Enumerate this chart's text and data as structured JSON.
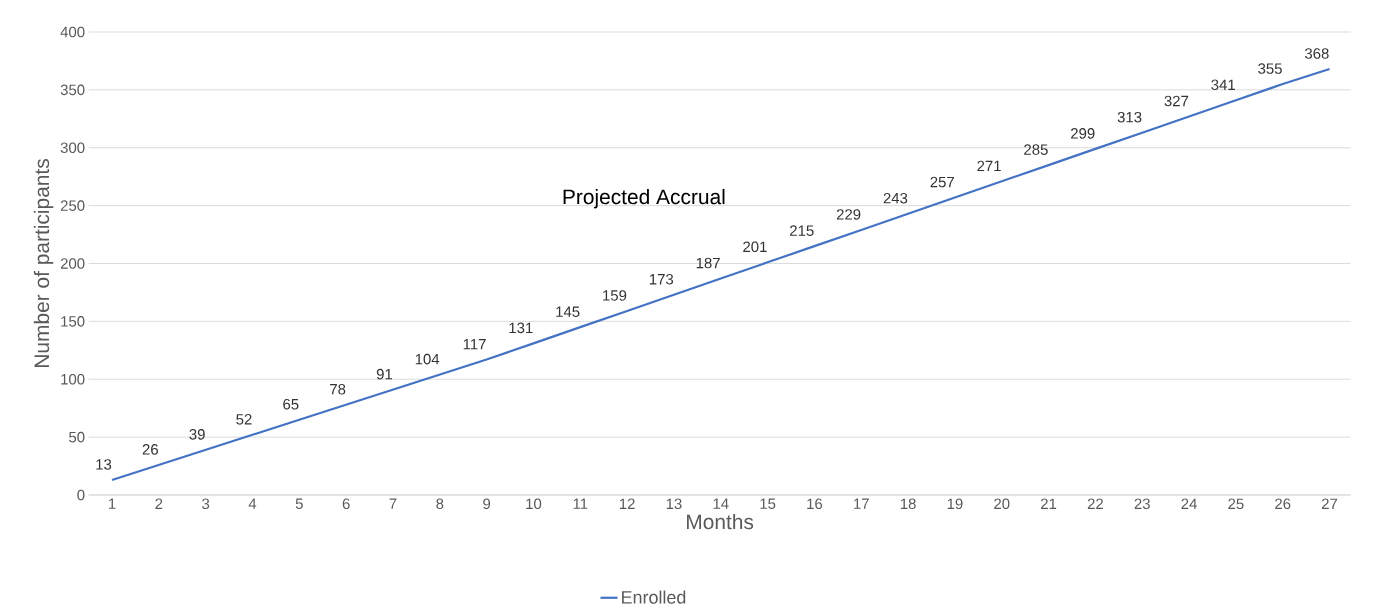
{
  "chart_data": {
    "type": "line",
    "title": "Projected Accrual",
    "xlabel": "Months",
    "ylabel": "Number of participants",
    "categories": [
      "1",
      "2",
      "3",
      "4",
      "5",
      "6",
      "7",
      "8",
      "9",
      "10",
      "11",
      "12",
      "13",
      "14",
      "15",
      "16",
      "17",
      "18",
      "19",
      "20",
      "21",
      "22",
      "23",
      "24",
      "25",
      "26",
      "27"
    ],
    "series": [
      {
        "name": "Enrolled",
        "color": "#4472c4",
        "values": [
          13,
          26,
          39,
          52,
          65,
          78,
          91,
          104,
          117,
          131,
          145,
          159,
          173,
          187,
          201,
          215,
          229,
          243,
          257,
          271,
          285,
          299,
          313,
          327,
          341,
          355,
          368
        ]
      }
    ],
    "ylim": [
      0,
      400
    ],
    "yticks": [
      0,
      50,
      100,
      150,
      200,
      250,
      300,
      350,
      400
    ],
    "grid": "y",
    "legend": "bottom",
    "marker": "none",
    "line_style": "solid",
    "data_labels": true
  }
}
